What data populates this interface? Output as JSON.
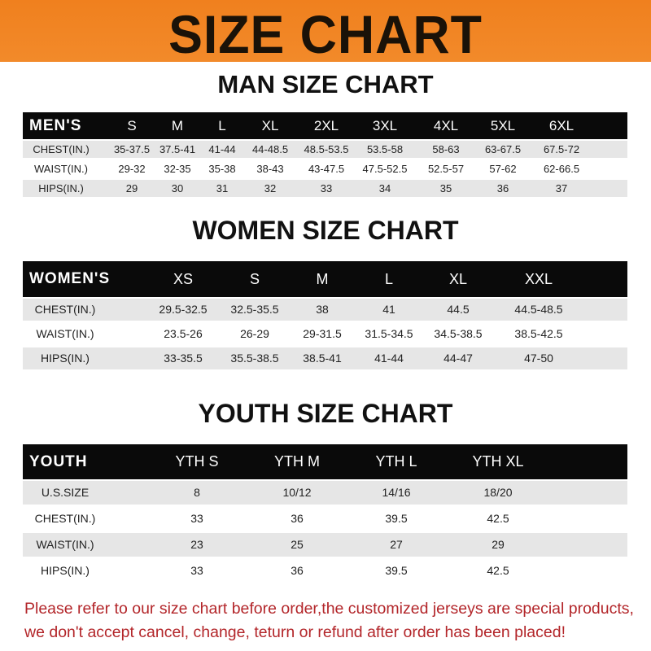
{
  "title": "SIZE CHART",
  "colors": {
    "banner": "#f0801e",
    "header_bar": "#0a0a0a",
    "row_alt": "#e6e6e6",
    "note": "#b3262a"
  },
  "men": {
    "title": "MAN SIZE CHART",
    "header_label": "MEN'S",
    "sizes": [
      "S",
      "M",
      "L",
      "XL",
      "2XL",
      "3XL",
      "4XL",
      "5XL",
      "6XL"
    ],
    "rows": [
      {
        "label": "CHEST(IN.)",
        "values": [
          "35-37.5",
          "37.5-41",
          "41-44",
          "44-48.5",
          "48.5-53.5",
          "53.5-58",
          "58-63",
          "63-67.5",
          "67.5-72"
        ]
      },
      {
        "label": "WAIST(IN.)",
        "values": [
          "29-32",
          "32-35",
          "35-38",
          "38-43",
          "43-47.5",
          "47.5-52.5",
          "52.5-57",
          "57-62",
          "62-66.5"
        ]
      },
      {
        "label": "HIPS(IN.)",
        "values": [
          "29",
          "30",
          "31",
          "32",
          "33",
          "34",
          "35",
          "36",
          "37"
        ]
      }
    ]
  },
  "women": {
    "title": "WOMEN SIZE CHART",
    "header_label": "WOMEN'S",
    "sizes": [
      "XS",
      "S",
      "M",
      "L",
      "XL",
      "XXL"
    ],
    "rows": [
      {
        "label": "CHEST(IN.)",
        "values": [
          "29.5-32.5",
          "32.5-35.5",
          "38",
          "41",
          "44.5",
          "44.5-48.5"
        ]
      },
      {
        "label": "WAIST(IN.)",
        "values": [
          "23.5-26",
          "26-29",
          "29-31.5",
          "31.5-34.5",
          "34.5-38.5",
          "38.5-42.5"
        ]
      },
      {
        "label": "HIPS(IN.)",
        "values": [
          "33-35.5",
          "35.5-38.5",
          "38.5-41",
          "41-44",
          "44-47",
          "47-50"
        ]
      }
    ]
  },
  "youth": {
    "title": "YOUTH SIZE CHART",
    "header_label": "YOUTH",
    "sizes": [
      "YTH S",
      "YTH M",
      "YTH L",
      "YTH XL"
    ],
    "rows": [
      {
        "label": "U.S.SIZE",
        "values": [
          "8",
          "10/12",
          "14/16",
          "18/20"
        ]
      },
      {
        "label": "CHEST(IN.)",
        "values": [
          "33",
          "36",
          "39.5",
          "42.5"
        ]
      },
      {
        "label": "WAIST(IN.)",
        "values": [
          "23",
          "25",
          "27",
          "29"
        ]
      },
      {
        "label": "HIPS(IN.)",
        "values": [
          "33",
          "36",
          "39.5",
          "42.5"
        ]
      }
    ]
  },
  "note": {
    "line1": "Please refer to our size chart before order,the customized jerseys are special products,",
    "line2": "we don't accept cancel, change, teturn or refund after order has been placed!"
  }
}
